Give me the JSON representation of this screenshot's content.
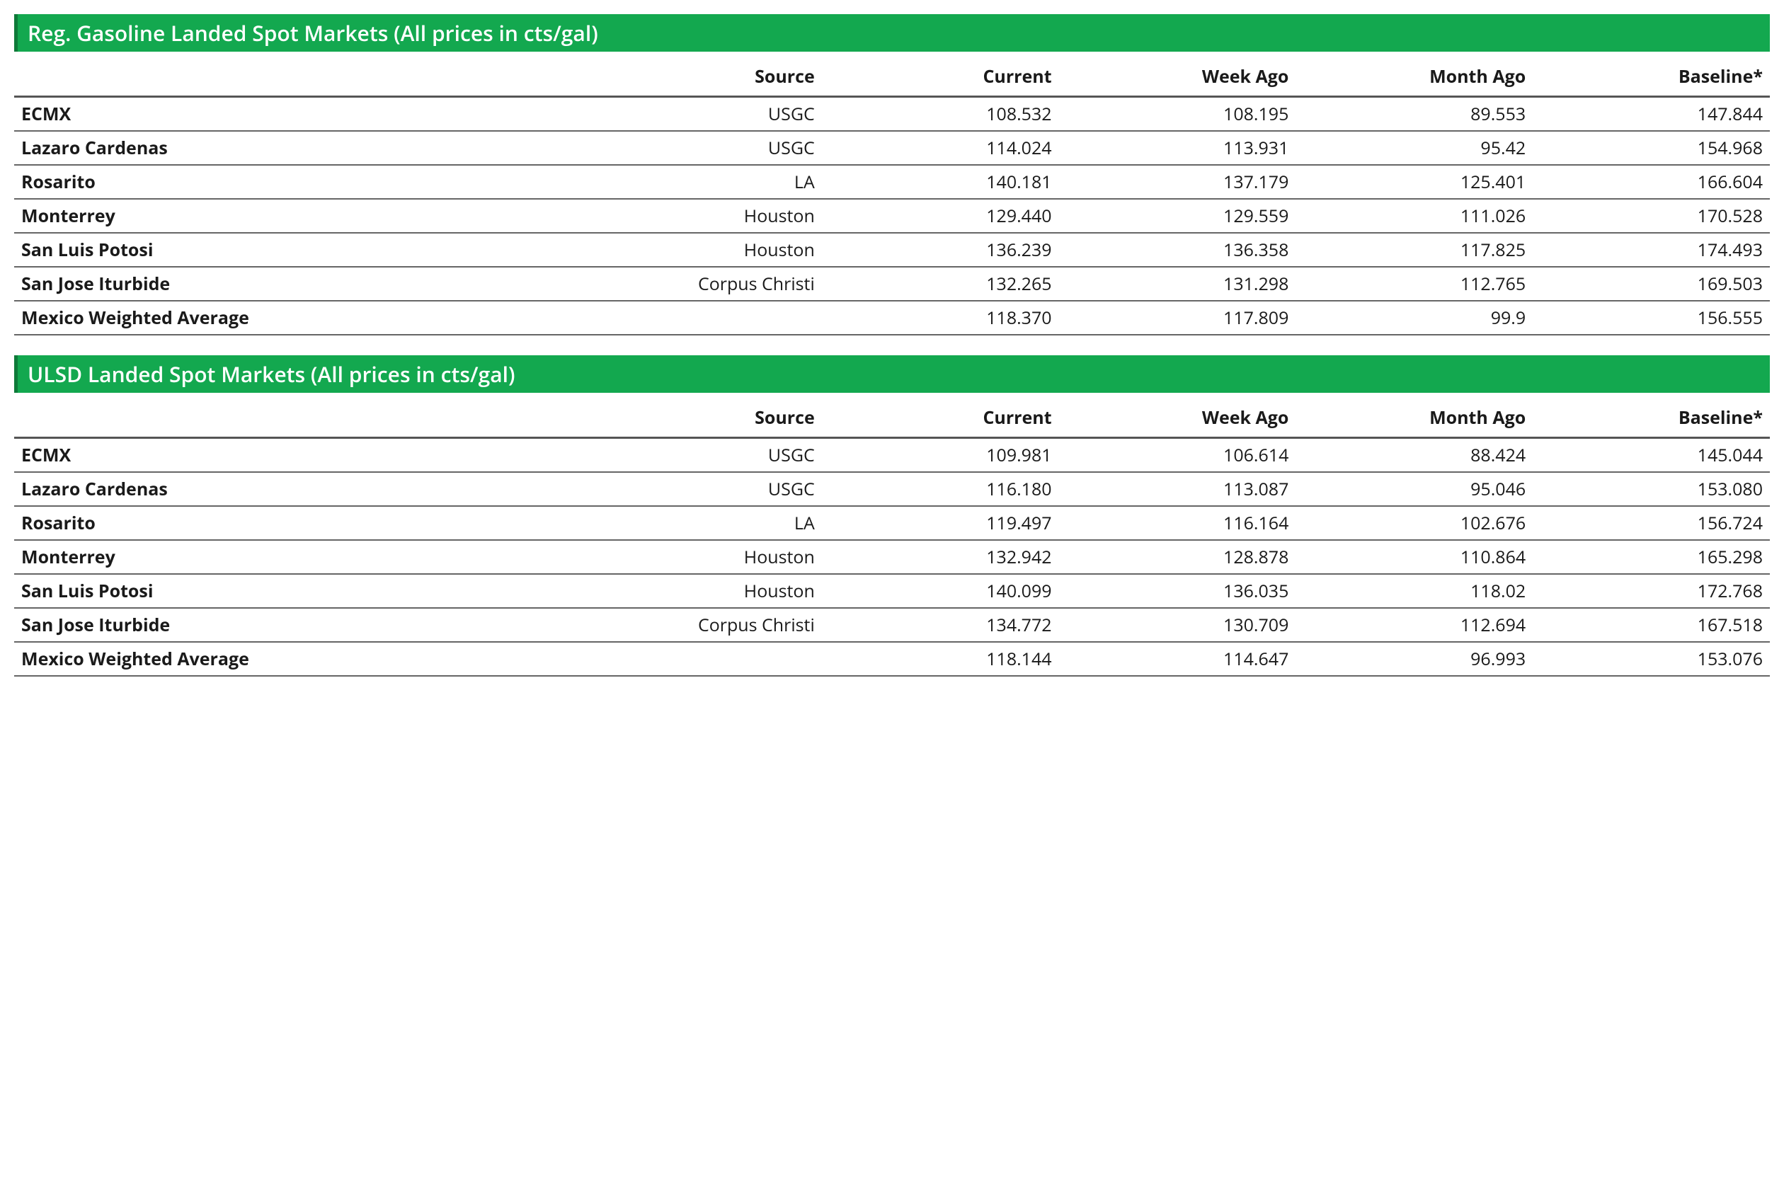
{
  "tables": [
    {
      "title": "Reg. Gasoline Landed Spot Markets (All prices in cts/gal)",
      "columns": [
        "",
        "Source",
        "Current",
        "Week Ago",
        "Month Ago",
        "Baseline*"
      ],
      "rows": [
        [
          "ECMX",
          "USGC",
          "108.532",
          "108.195",
          "89.553",
          "147.844"
        ],
        [
          "Lazaro Cardenas",
          "USGC",
          "114.024",
          "113.931",
          "95.42",
          "154.968"
        ],
        [
          "Rosarito",
          "LA",
          "140.181",
          "137.179",
          "125.401",
          "166.604"
        ],
        [
          "Monterrey",
          "Houston",
          "129.440",
          "129.559",
          "111.026",
          "170.528"
        ],
        [
          "San Luis Potosi",
          "Houston",
          "136.239",
          "136.358",
          "117.825",
          "174.493"
        ],
        [
          "San Jose Iturbide",
          "Corpus Christi",
          "132.265",
          "131.298",
          "112.765",
          "169.503"
        ],
        [
          "Mexico Weighted Average",
          "",
          "118.370",
          "117.809",
          "99.9",
          "156.555"
        ]
      ]
    },
    {
      "title": "ULSD Landed Spot Markets (All prices in cts/gal)",
      "columns": [
        "",
        "Source",
        "Current",
        "Week Ago",
        "Month Ago",
        "Baseline*"
      ],
      "rows": [
        [
          "ECMX",
          "USGC",
          "109.981",
          "106.614",
          "88.424",
          "145.044"
        ],
        [
          "Lazaro Cardenas",
          "USGC",
          "116.180",
          "113.087",
          "95.046",
          "153.080"
        ],
        [
          "Rosarito",
          "LA",
          "119.497",
          "116.164",
          "102.676",
          "156.724"
        ],
        [
          "Monterrey",
          "Houston",
          "132.942",
          "128.878",
          "110.864",
          "165.298"
        ],
        [
          "San Luis Potosi",
          "Houston",
          "140.099",
          "136.035",
          "118.02",
          "172.768"
        ],
        [
          "San Jose Iturbide",
          "Corpus Christi",
          "134.772",
          "130.709",
          "112.694",
          "167.518"
        ],
        [
          "Mexico Weighted Average",
          "",
          "118.144",
          "114.647",
          "96.993",
          "153.076"
        ]
      ]
    }
  ],
  "style": {
    "header_bg": "#13a84f",
    "header_border": "#0e7a39",
    "header_text": "#ffffff",
    "row_border": "#666666",
    "thead_border": "#555555",
    "body_text": "#1a1a1a",
    "title_fontsize": 30,
    "cell_fontsize": 25
  }
}
